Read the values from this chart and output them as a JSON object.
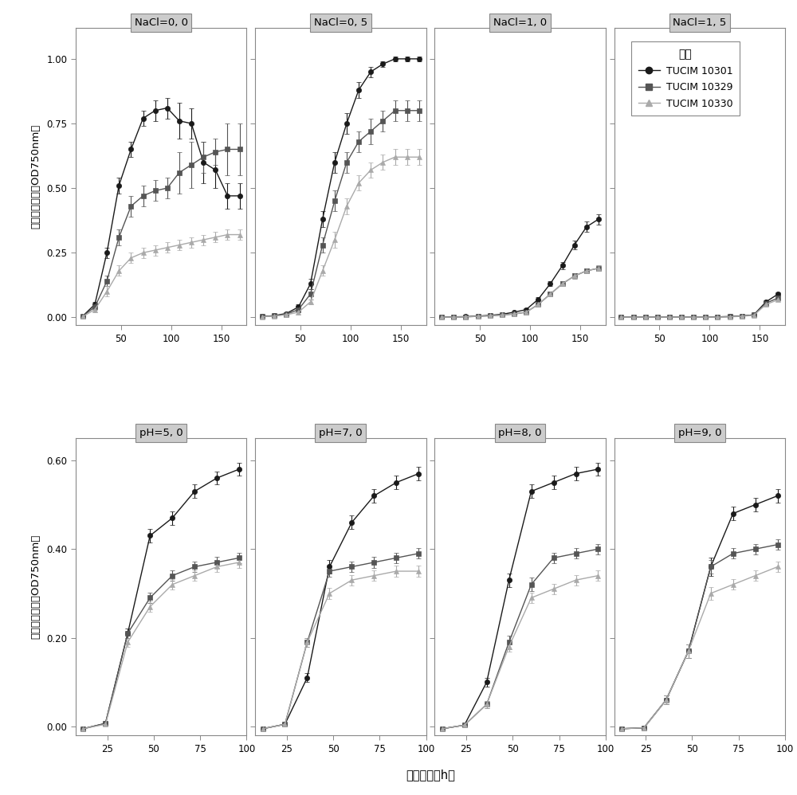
{
  "nacl_panels": [
    {
      "title": "NaCl=0, 0",
      "x": [
        12,
        24,
        36,
        48,
        60,
        72,
        84,
        96,
        108,
        120,
        132,
        144,
        156,
        168
      ],
      "strain1_y": [
        0.005,
        0.05,
        0.25,
        0.51,
        0.65,
        0.77,
        0.8,
        0.81,
        0.76,
        0.75,
        0.6,
        0.57,
        0.47,
        0.47
      ],
      "strain1_e": [
        0.003,
        0.01,
        0.02,
        0.03,
        0.03,
        0.03,
        0.04,
        0.04,
        0.07,
        0.06,
        0.08,
        0.07,
        0.05,
        0.05
      ],
      "strain2_y": [
        0.005,
        0.04,
        0.14,
        0.31,
        0.43,
        0.47,
        0.49,
        0.5,
        0.56,
        0.59,
        0.62,
        0.64,
        0.65,
        0.65
      ],
      "strain2_e": [
        0.003,
        0.01,
        0.02,
        0.03,
        0.04,
        0.04,
        0.04,
        0.04,
        0.08,
        0.09,
        0.06,
        0.05,
        0.1,
        0.1
      ],
      "strain3_y": [
        0.003,
        0.03,
        0.1,
        0.18,
        0.23,
        0.25,
        0.26,
        0.27,
        0.28,
        0.29,
        0.3,
        0.31,
        0.32,
        0.32
      ],
      "strain3_e": [
        0.002,
        0.01,
        0.02,
        0.02,
        0.02,
        0.02,
        0.02,
        0.02,
        0.02,
        0.02,
        0.02,
        0.02,
        0.02,
        0.02
      ],
      "ylim": [
        -0.03,
        1.12
      ],
      "yticks": [
        0.0,
        0.25,
        0.5,
        0.75,
        1.0
      ],
      "xlim": [
        5,
        175
      ],
      "xticks": [
        50,
        100,
        150
      ]
    },
    {
      "title": "NaCl=0, 5",
      "x": [
        12,
        24,
        36,
        48,
        60,
        72,
        84,
        96,
        108,
        120,
        132,
        144,
        156,
        168
      ],
      "strain1_y": [
        0.003,
        0.007,
        0.015,
        0.04,
        0.13,
        0.38,
        0.6,
        0.75,
        0.88,
        0.95,
        0.98,
        1.0,
        1.0,
        1.0
      ],
      "strain1_e": [
        0.002,
        0.003,
        0.005,
        0.01,
        0.02,
        0.03,
        0.04,
        0.04,
        0.03,
        0.02,
        0.01,
        0.01,
        0.01,
        0.01
      ],
      "strain2_y": [
        0.003,
        0.006,
        0.012,
        0.03,
        0.09,
        0.28,
        0.45,
        0.6,
        0.68,
        0.72,
        0.76,
        0.8,
        0.8,
        0.8
      ],
      "strain2_e": [
        0.002,
        0.003,
        0.005,
        0.01,
        0.02,
        0.03,
        0.04,
        0.04,
        0.04,
        0.05,
        0.04,
        0.04,
        0.04,
        0.04
      ],
      "strain3_y": [
        0.002,
        0.005,
        0.01,
        0.02,
        0.06,
        0.18,
        0.3,
        0.43,
        0.52,
        0.57,
        0.6,
        0.62,
        0.62,
        0.62
      ],
      "strain3_e": [
        0.001,
        0.002,
        0.003,
        0.01,
        0.01,
        0.02,
        0.03,
        0.03,
        0.03,
        0.03,
        0.03,
        0.03,
        0.03,
        0.03
      ],
      "ylim": [
        -0.03,
        1.12
      ],
      "yticks": [
        0.0,
        0.25,
        0.5,
        0.75,
        1.0
      ],
      "xlim": [
        5,
        175
      ],
      "xticks": [
        50,
        100,
        150
      ]
    },
    {
      "title": "NaCl=1, 0",
      "x": [
        12,
        24,
        36,
        48,
        60,
        72,
        84,
        96,
        108,
        120,
        132,
        144,
        156,
        168
      ],
      "strain1_y": [
        0.001,
        0.002,
        0.003,
        0.005,
        0.008,
        0.012,
        0.02,
        0.03,
        0.07,
        0.13,
        0.2,
        0.28,
        0.35,
        0.38
      ],
      "strain1_e": [
        0.001,
        0.001,
        0.001,
        0.001,
        0.002,
        0.002,
        0.003,
        0.004,
        0.007,
        0.01,
        0.015,
        0.018,
        0.02,
        0.02
      ],
      "strain2_y": [
        0.001,
        0.001,
        0.002,
        0.004,
        0.006,
        0.009,
        0.013,
        0.02,
        0.05,
        0.09,
        0.13,
        0.16,
        0.18,
        0.19
      ],
      "strain2_e": [
        0.001,
        0.001,
        0.001,
        0.001,
        0.001,
        0.002,
        0.002,
        0.003,
        0.006,
        0.009,
        0.01,
        0.01,
        0.01,
        0.01
      ],
      "strain3_y": [
        0.001,
        0.001,
        0.002,
        0.004,
        0.006,
        0.009,
        0.013,
        0.02,
        0.05,
        0.09,
        0.13,
        0.16,
        0.18,
        0.19
      ],
      "strain3_e": [
        0.001,
        0.001,
        0.001,
        0.001,
        0.001,
        0.002,
        0.002,
        0.003,
        0.006,
        0.009,
        0.01,
        0.01,
        0.01,
        0.01
      ],
      "ylim": [
        -0.03,
        1.12
      ],
      "yticks": [
        0.0,
        0.25,
        0.5,
        0.75,
        1.0
      ],
      "xlim": [
        5,
        175
      ],
      "xticks": [
        50,
        100,
        150
      ]
    },
    {
      "title": "NaCl=1, 5",
      "x": [
        12,
        24,
        36,
        48,
        60,
        72,
        84,
        96,
        108,
        120,
        132,
        144,
        156,
        168
      ],
      "strain1_y": [
        0.001,
        0.001,
        0.001,
        0.001,
        0.001,
        0.001,
        0.001,
        0.001,
        0.002,
        0.003,
        0.005,
        0.01,
        0.06,
        0.09
      ],
      "strain1_e": [
        0.001,
        0.001,
        0.001,
        0.001,
        0.001,
        0.001,
        0.001,
        0.001,
        0.001,
        0.001,
        0.002,
        0.003,
        0.005,
        0.006
      ],
      "strain2_y": [
        0.001,
        0.001,
        0.001,
        0.001,
        0.001,
        0.001,
        0.001,
        0.001,
        0.002,
        0.003,
        0.005,
        0.01,
        0.055,
        0.075
      ],
      "strain2_e": [
        0.001,
        0.001,
        0.001,
        0.001,
        0.001,
        0.001,
        0.001,
        0.001,
        0.001,
        0.001,
        0.002,
        0.003,
        0.005,
        0.005
      ],
      "strain3_y": [
        0.001,
        0.001,
        0.001,
        0.001,
        0.001,
        0.001,
        0.001,
        0.001,
        0.001,
        0.002,
        0.004,
        0.008,
        0.05,
        0.068
      ],
      "strain3_e": [
        0.001,
        0.001,
        0.001,
        0.001,
        0.001,
        0.001,
        0.001,
        0.001,
        0.001,
        0.001,
        0.001,
        0.002,
        0.004,
        0.005
      ],
      "ylim": [
        -0.03,
        1.12
      ],
      "yticks": [
        0.0,
        0.25,
        0.5,
        0.75,
        1.0
      ],
      "xlim": [
        5,
        175
      ],
      "xticks": [
        50,
        100,
        150
      ]
    }
  ],
  "ph_panels": [
    {
      "title": "pH=5, 0",
      "x": [
        12,
        24,
        36,
        48,
        60,
        72,
        84,
        96
      ],
      "strain1_y": [
        -0.005,
        0.007,
        0.21,
        0.43,
        0.47,
        0.53,
        0.56,
        0.58
      ],
      "strain1_e": [
        0.002,
        0.003,
        0.01,
        0.015,
        0.015,
        0.015,
        0.015,
        0.015
      ],
      "strain2_y": [
        -0.005,
        0.007,
        0.21,
        0.29,
        0.34,
        0.36,
        0.37,
        0.38
      ],
      "strain2_e": [
        0.002,
        0.003,
        0.01,
        0.012,
        0.012,
        0.012,
        0.012,
        0.012
      ],
      "strain3_y": [
        -0.005,
        0.005,
        0.19,
        0.27,
        0.32,
        0.34,
        0.36,
        0.37
      ],
      "strain3_e": [
        0.002,
        0.003,
        0.01,
        0.012,
        0.012,
        0.012,
        0.012,
        0.012
      ],
      "ylim": [
        -0.02,
        0.65
      ],
      "yticks": [
        0.0,
        0.2,
        0.4,
        0.6
      ],
      "xlim": [
        8,
        100
      ],
      "xticks": [
        25,
        50,
        75,
        100
      ]
    },
    {
      "title": "pH=7, 0",
      "x": [
        12,
        24,
        36,
        48,
        60,
        72,
        84,
        96
      ],
      "strain1_y": [
        -0.005,
        0.005,
        0.11,
        0.36,
        0.46,
        0.52,
        0.55,
        0.57
      ],
      "strain1_e": [
        0.002,
        0.003,
        0.01,
        0.015,
        0.015,
        0.015,
        0.015,
        0.015
      ],
      "strain2_y": [
        -0.005,
        0.005,
        0.19,
        0.35,
        0.36,
        0.37,
        0.38,
        0.39
      ],
      "strain2_e": [
        0.002,
        0.003,
        0.01,
        0.012,
        0.012,
        0.012,
        0.012,
        0.012
      ],
      "strain3_y": [
        -0.005,
        0.005,
        0.19,
        0.3,
        0.33,
        0.34,
        0.35,
        0.35
      ],
      "strain3_e": [
        0.002,
        0.003,
        0.01,
        0.012,
        0.012,
        0.012,
        0.012,
        0.012
      ],
      "ylim": [
        -0.02,
        0.65
      ],
      "yticks": [
        0.0,
        0.2,
        0.4,
        0.6
      ],
      "xlim": [
        8,
        100
      ],
      "xticks": [
        25,
        50,
        75,
        100
      ]
    },
    {
      "title": "pH=8, 0",
      "x": [
        12,
        24,
        36,
        48,
        60,
        72,
        84,
        96
      ],
      "strain1_y": [
        -0.005,
        0.003,
        0.1,
        0.33,
        0.53,
        0.55,
        0.57,
        0.58
      ],
      "strain1_e": [
        0.002,
        0.003,
        0.01,
        0.015,
        0.015,
        0.015,
        0.015,
        0.015
      ],
      "strain2_y": [
        -0.005,
        0.003,
        0.05,
        0.19,
        0.32,
        0.38,
        0.39,
        0.4
      ],
      "strain2_e": [
        0.002,
        0.003,
        0.008,
        0.015,
        0.015,
        0.012,
        0.012,
        0.012
      ],
      "strain3_y": [
        -0.005,
        0.003,
        0.05,
        0.18,
        0.29,
        0.31,
        0.33,
        0.34
      ],
      "strain3_e": [
        0.002,
        0.003,
        0.008,
        0.012,
        0.012,
        0.012,
        0.012,
        0.012
      ],
      "ylim": [
        -0.02,
        0.65
      ],
      "yticks": [
        0.0,
        0.2,
        0.4,
        0.6
      ],
      "xlim": [
        8,
        100
      ],
      "xticks": [
        25,
        50,
        75,
        100
      ]
    },
    {
      "title": "pH=9, 0",
      "x": [
        12,
        24,
        36,
        48,
        60,
        72,
        84,
        96
      ],
      "strain1_y": [
        -0.005,
        -0.003,
        0.06,
        0.17,
        0.36,
        0.48,
        0.5,
        0.52
      ],
      "strain1_e": [
        0.002,
        0.003,
        0.01,
        0.015,
        0.02,
        0.015,
        0.015,
        0.015
      ],
      "strain2_y": [
        -0.005,
        -0.003,
        0.06,
        0.17,
        0.36,
        0.39,
        0.4,
        0.41
      ],
      "strain2_e": [
        0.002,
        0.003,
        0.01,
        0.015,
        0.015,
        0.012,
        0.012,
        0.012
      ],
      "strain3_y": [
        -0.005,
        -0.003,
        0.06,
        0.17,
        0.3,
        0.32,
        0.34,
        0.36
      ],
      "strain3_e": [
        0.002,
        0.003,
        0.01,
        0.015,
        0.015,
        0.012,
        0.012,
        0.012
      ],
      "ylim": [
        -0.02,
        0.65
      ],
      "yticks": [
        0.0,
        0.2,
        0.4,
        0.6
      ],
      "xlim": [
        8,
        100
      ],
      "xticks": [
        25,
        50,
        75,
        100
      ]
    }
  ],
  "strain_colors": [
    "#1a1a1a",
    "#555555",
    "#aaaaaa"
  ],
  "strain_labels": [
    "TUCIM 10301",
    "TUCIM 10329",
    "TUCIM 10330"
  ],
  "strain_markers": [
    "o",
    "s",
    "^"
  ],
  "ylabel": "菌株生长情况（OD750nm）",
  "xlabel": "培养时间（h）",
  "legend_title": "菌株",
  "background_color": "#ffffff",
  "panel_header_color": "#cccccc",
  "panel_border_color": "#888888"
}
